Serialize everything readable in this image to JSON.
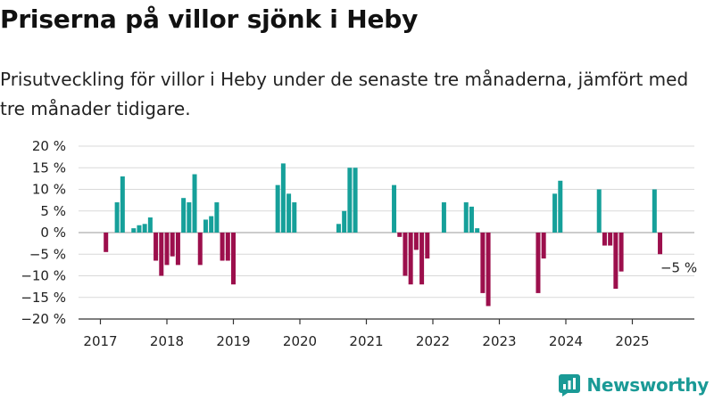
{
  "title": "Priserna på villor sjönk i Heby",
  "subtitle": "Prisutveckling för villor i Heby under de senaste tre månaderna, jämfört med tre månader tidigare.",
  "brand": "Newsworthy",
  "colors": {
    "positive": "#16a09a",
    "negative": "#9c0f4c",
    "grid": "#d9d9d9",
    "axis": "#333333"
  },
  "chart_data": {
    "type": "bar",
    "x_unit": "month",
    "ylim": [
      -20,
      20
    ],
    "yticks": [
      20,
      15,
      10,
      5,
      0,
      -5,
      -10,
      -15,
      -20
    ],
    "ytick_labels": [
      "20 %",
      "15 %",
      "10 %",
      "5 %",
      "0 %",
      "−5 %",
      "−10 %",
      "−15 %",
      "−20 %"
    ],
    "xtick_labels": [
      "2017",
      "2018",
      "2019",
      "2020",
      "2021",
      "2022",
      "2023",
      "2024",
      "2025"
    ],
    "grid": true,
    "annotation": {
      "text": "−5 %",
      "date": "2025-06",
      "value": -5
    },
    "bars": [
      {
        "date": "2017-02",
        "value": -4.5
      },
      {
        "date": "2017-04",
        "value": 7
      },
      {
        "date": "2017-05",
        "value": 13
      },
      {
        "date": "2017-07",
        "value": 1
      },
      {
        "date": "2017-08",
        "value": 1.7
      },
      {
        "date": "2017-09",
        "value": 2
      },
      {
        "date": "2017-10",
        "value": 3.5
      },
      {
        "date": "2017-11",
        "value": -6.5
      },
      {
        "date": "2017-12",
        "value": -10
      },
      {
        "date": "2018-01",
        "value": -7.5
      },
      {
        "date": "2018-02",
        "value": -5.5
      },
      {
        "date": "2018-03",
        "value": -7.5
      },
      {
        "date": "2018-04",
        "value": 8
      },
      {
        "date": "2018-05",
        "value": 7
      },
      {
        "date": "2018-06",
        "value": 13.5
      },
      {
        "date": "2018-07",
        "value": -7.5
      },
      {
        "date": "2018-08",
        "value": 3
      },
      {
        "date": "2018-09",
        "value": 3.8
      },
      {
        "date": "2018-10",
        "value": 7
      },
      {
        "date": "2018-11",
        "value": -6.5
      },
      {
        "date": "2018-12",
        "value": -6.5
      },
      {
        "date": "2019-01",
        "value": -12
      },
      {
        "date": "2019-09",
        "value": 11
      },
      {
        "date": "2019-10",
        "value": 16
      },
      {
        "date": "2019-11",
        "value": 9
      },
      {
        "date": "2019-12",
        "value": 7
      },
      {
        "date": "2020-08",
        "value": 2
      },
      {
        "date": "2020-09",
        "value": 5
      },
      {
        "date": "2020-10",
        "value": 15
      },
      {
        "date": "2020-11",
        "value": 15
      },
      {
        "date": "2021-06",
        "value": 11
      },
      {
        "date": "2021-07",
        "value": -1
      },
      {
        "date": "2021-08",
        "value": -10
      },
      {
        "date": "2021-09",
        "value": -12
      },
      {
        "date": "2021-10",
        "value": -4
      },
      {
        "date": "2021-11",
        "value": -12
      },
      {
        "date": "2021-12",
        "value": -6
      },
      {
        "date": "2022-03",
        "value": 7
      },
      {
        "date": "2022-07",
        "value": 7
      },
      {
        "date": "2022-08",
        "value": 6
      },
      {
        "date": "2022-09",
        "value": 1
      },
      {
        "date": "2022-10",
        "value": -14
      },
      {
        "date": "2022-11",
        "value": -17
      },
      {
        "date": "2023-08",
        "value": -14
      },
      {
        "date": "2023-09",
        "value": -6
      },
      {
        "date": "2023-11",
        "value": 9
      },
      {
        "date": "2023-12",
        "value": 12
      },
      {
        "date": "2024-07",
        "value": 10
      },
      {
        "date": "2024-08",
        "value": -3
      },
      {
        "date": "2024-09",
        "value": -3
      },
      {
        "date": "2024-10",
        "value": -13
      },
      {
        "date": "2024-11",
        "value": -9
      },
      {
        "date": "2025-05",
        "value": 10
      },
      {
        "date": "2025-06",
        "value": -5
      }
    ]
  }
}
